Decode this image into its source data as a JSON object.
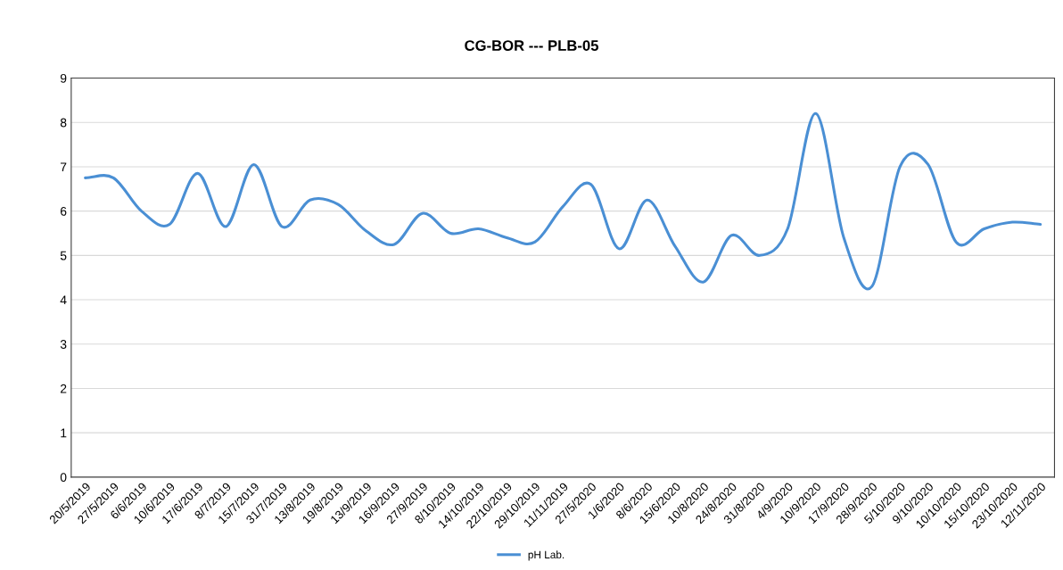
{
  "chart_data": {
    "type": "line",
    "title": "CG-BOR --- PLB-05",
    "categories": [
      "20/5/2019",
      "27/5/2019",
      "6/6/2019",
      "10/6/2019",
      "17/6/2019",
      "8/7/2019",
      "15/7/2019",
      "31/7/2019",
      "13/8/2019",
      "19/8/2019",
      "13/9/2019",
      "16/9/2019",
      "27/9/2019",
      "8/10/2019",
      "14/10/2019",
      "22/10/2019",
      "29/10/2019",
      "11/11/2019",
      "27/5/2020",
      "1/6/2020",
      "8/6/2020",
      "15/6/2020",
      "10/8/2020",
      "24/8/2020",
      "31/8/2020",
      "4/9/2020",
      "10/9/2020",
      "17/9/2020",
      "28/9/2020",
      "5/10/2020",
      "9/10/2020",
      "10/10/2020",
      "15/10/2020",
      "23/10/2020",
      "12/11/2020"
    ],
    "series": [
      {
        "name": "pH Lab.",
        "color": "#4a8fd4",
        "values": [
          6.75,
          6.75,
          6.0,
          5.7,
          6.85,
          5.65,
          7.05,
          5.65,
          6.25,
          6.15,
          5.55,
          5.25,
          5.95,
          5.5,
          5.6,
          5.4,
          5.3,
          6.1,
          6.6,
          5.15,
          6.25,
          5.2,
          4.4,
          5.45,
          5.0,
          5.6,
          8.2,
          5.4,
          4.3,
          7.0,
          7.05,
          5.3,
          5.6,
          5.75,
          5.7
        ]
      }
    ],
    "ylim": [
      0,
      9
    ],
    "yticks": [
      0,
      1,
      2,
      3,
      4,
      5,
      6,
      7,
      8,
      9
    ],
    "grid": "y",
    "legend": "bottom",
    "marker": "none",
    "line_style": "solid"
  }
}
